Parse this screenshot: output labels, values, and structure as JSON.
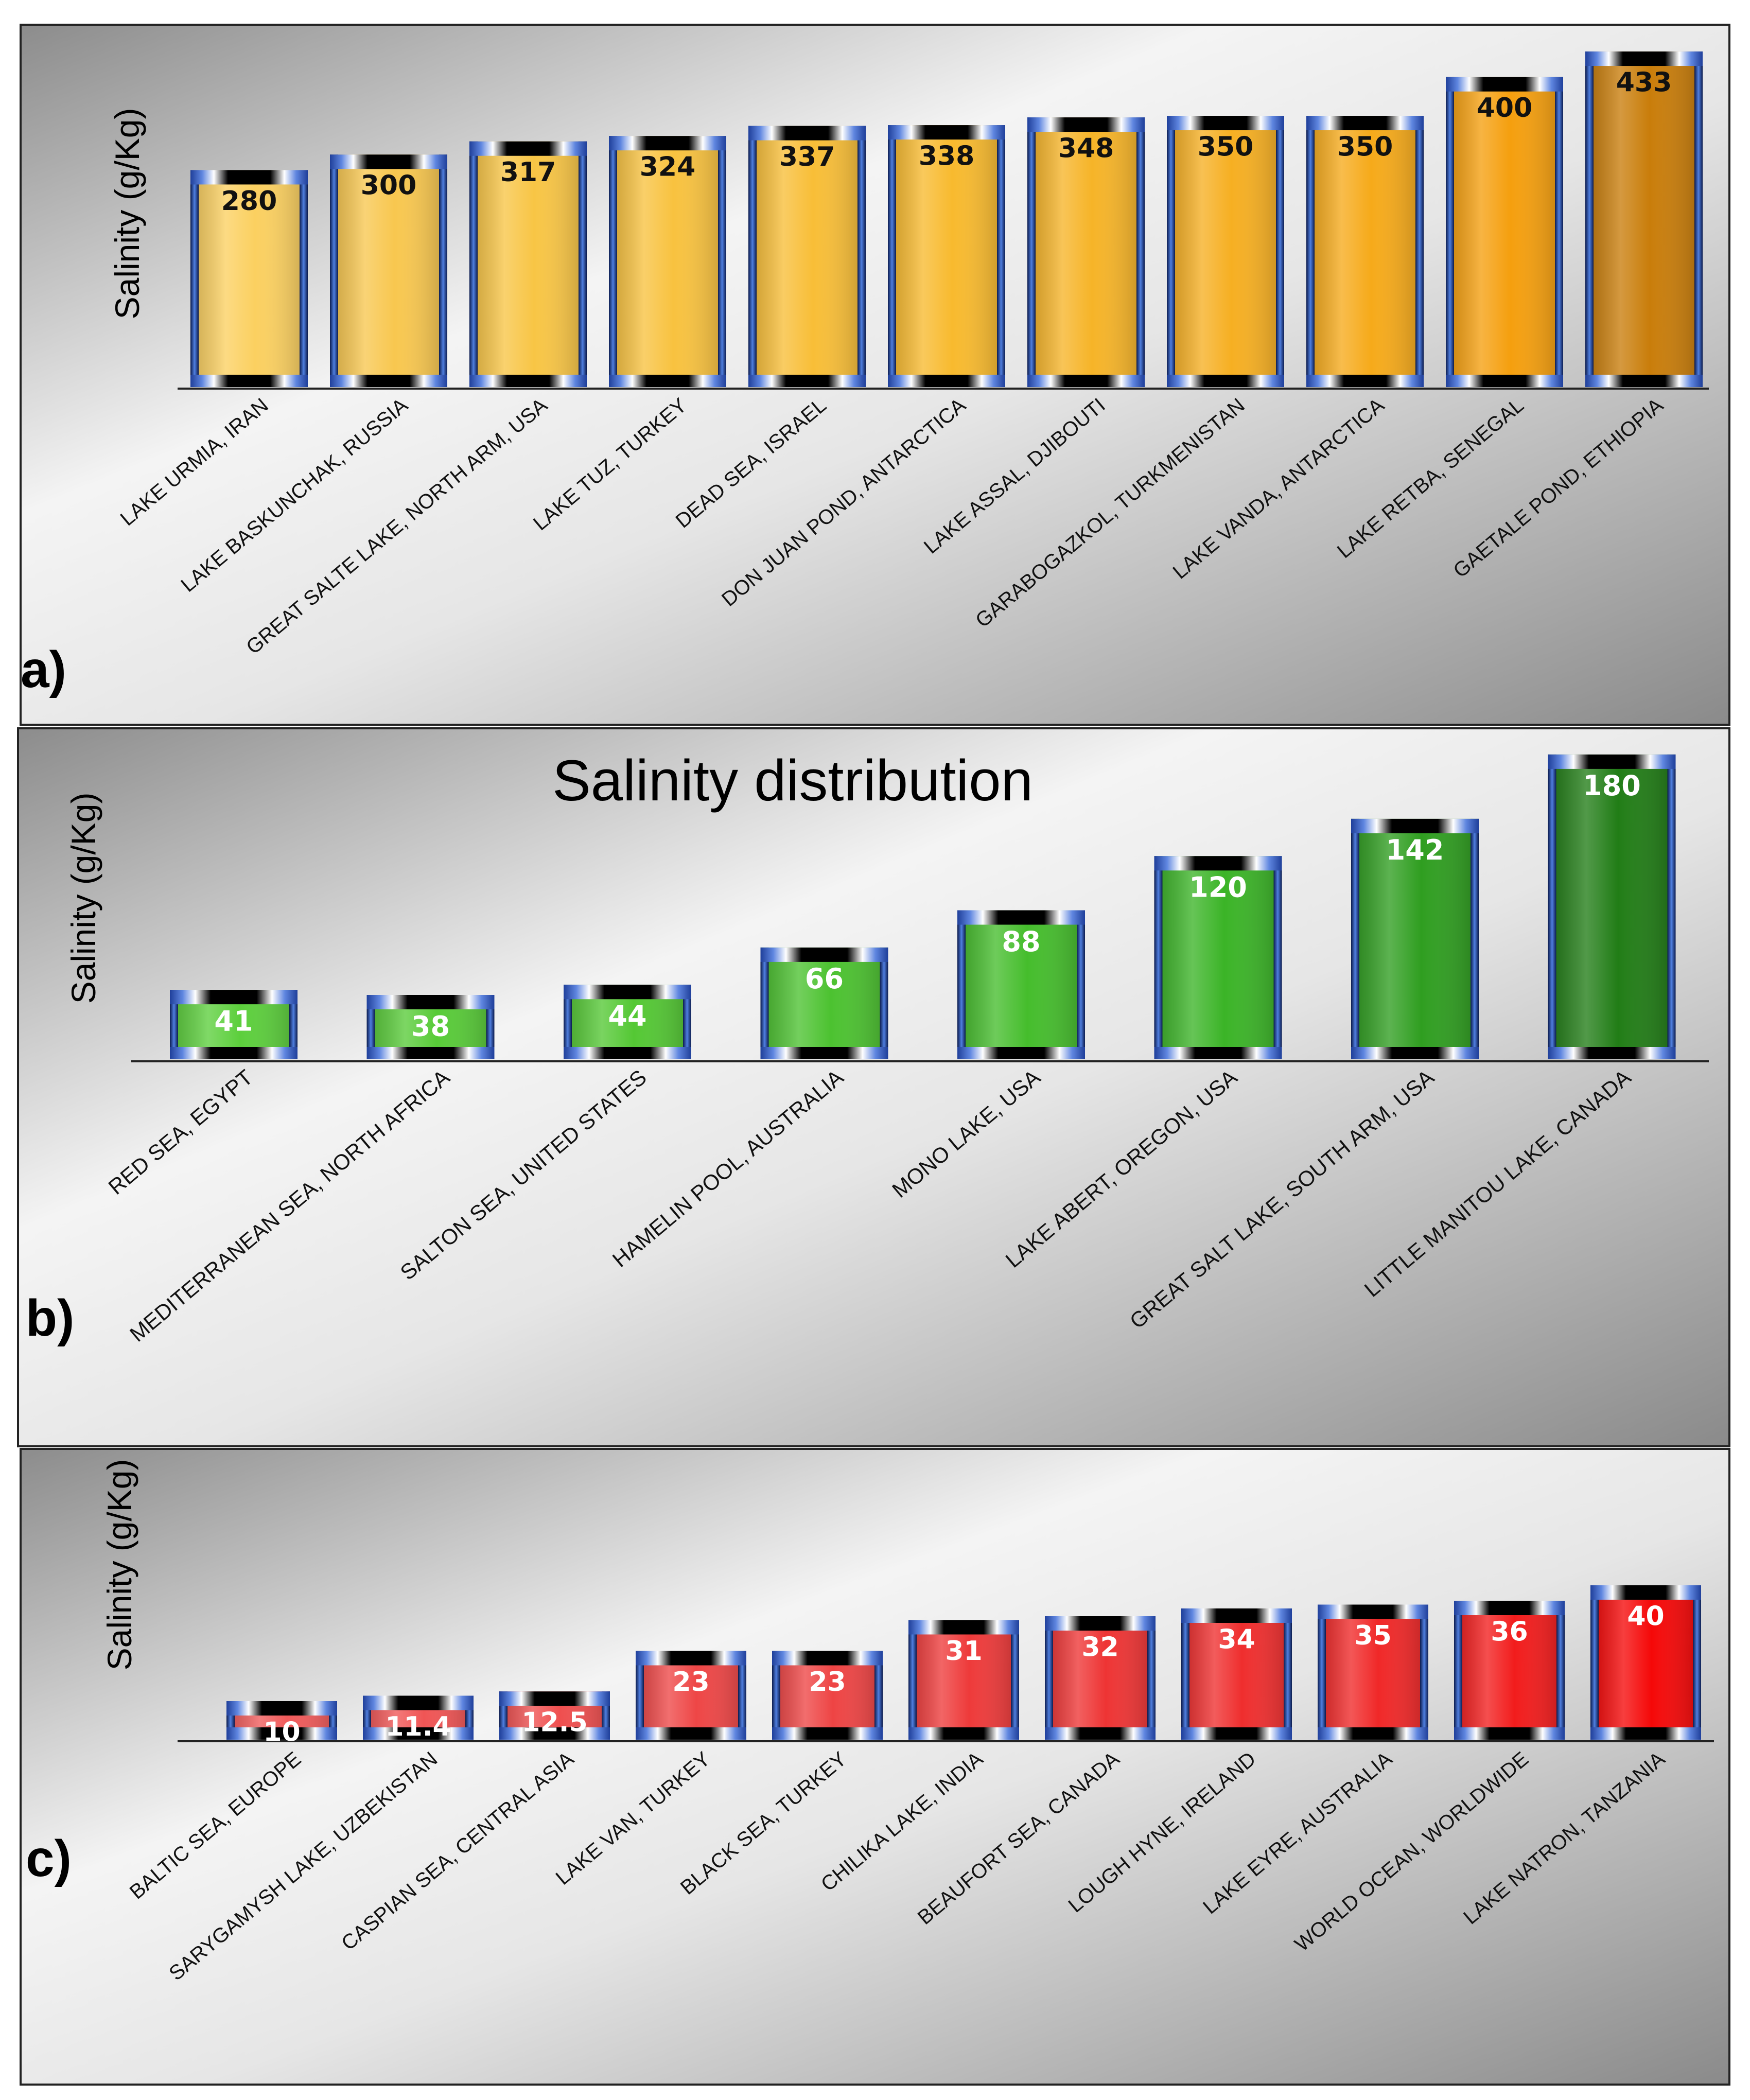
{
  "chart_data": [
    {
      "type": "bar",
      "panel": "a)",
      "title": "",
      "ylabel": "Salinity (g/Kg)",
      "xlabel": "",
      "ylim": [
        0,
        445
      ],
      "grid": false,
      "colors": [
        "#fbd060",
        "#f8c74f",
        "#f8c545",
        "#f8c23f",
        "#f8be37",
        "#f8ba2e",
        "#f6b428",
        "#f6af22",
        "#f6aa1a",
        "#f59f0e",
        "#c97d0a"
      ],
      "categories": [
        "LAKE URMIA, IRAN",
        "LAKE BASKUNCHAK, RUSSIA",
        "GREAT SALTE LAKE, NORTH ARM, USA",
        "LAKE TUZ, TURKEY",
        "DEAD SEA, ISRAEL",
        "DON JUAN POND, ANTARCTICA",
        "LAKE ASSAL, DJIBOUTI",
        "GARABOGAZKOL, TURKMENISTAN",
        "LAKE VANDA, ANTARCTICA",
        "LAKE RETBA, SENEGAL",
        "GAETALE POND, ETHIOPIA"
      ],
      "values": [
        280,
        300,
        317,
        324,
        337,
        338,
        348,
        350,
        350,
        400,
        433
      ],
      "data_labels": [
        "280",
        "300",
        "317",
        "324",
        "337",
        "338",
        "348",
        "350",
        "350",
        "400",
        "433"
      ]
    },
    {
      "type": "bar",
      "panel": "b)",
      "title": "Salinity distribution",
      "ylabel": "Salinity (g/Kg)",
      "xlabel": "",
      "ylim": [
        0,
        190
      ],
      "grid": false,
      "colors": [
        "#5ccf3c",
        "#58cb38",
        "#54c834",
        "#4cc230",
        "#45bd2c",
        "#3bb427",
        "#2f9e20",
        "#217d16"
      ],
      "categories": [
        "RED SEA, EGYPT",
        "MEDITERRANEAN SEA, NORTH AFRICA",
        "SALTON SEA, UNITED STATES",
        "HAMELIN POOL, AUSTRALIA",
        "MONO LAKE, USA",
        "LAKE ABERT, OREGON, USA",
        "GREAT SALT LAKE, SOUTH ARM, USA",
        "LITTLE MANITOU LAKE, CANADA"
      ],
      "values": [
        41,
        38,
        44,
        66,
        88,
        120,
        142,
        180
      ],
      "data_labels": [
        "41",
        "38",
        "44",
        "66",
        "88",
        "120",
        "142",
        "180"
      ]
    },
    {
      "type": "bar",
      "panel": "c)",
      "title": "",
      "ylabel": "Salinity (g/Kg)",
      "xlabel": "",
      "ylim": [
        0,
        44
      ],
      "grid": false,
      "colors": [
        "#f05a5a",
        "#f05555",
        "#ef4f4f",
        "#ee4646",
        "#ee4444",
        "#ee3a3a",
        "#ee3434",
        "#ef2e2e",
        "#f02828",
        "#f21c1c",
        "#f50808"
      ],
      "categories": [
        "BALTIC SEA, EUROPE",
        "SARYGAMYSH LAKE, UZBEKISTAN",
        "CASPIAN SEA, CENTRAL ASIA",
        "LAKE VAN, TURKEY",
        "BLACK SEA, TURKEY",
        "CHILIKA LAKE, INDIA",
        "BEAUFORT SEA, CANADA",
        "LOUGH HYNE, IRELAND",
        "LAKE EYRE, AUSTRALIA",
        "WORLD OCEAN, WORLDWIDE",
        "LAKE NATRON, TANZANIA"
      ],
      "values": [
        10,
        11.4,
        12.5,
        23,
        23,
        31,
        32,
        34,
        35,
        36,
        40
      ],
      "data_labels": [
        "10",
        "11.4",
        "12.5",
        "23",
        "23",
        "31",
        "32",
        "34",
        "35",
        "36",
        "40"
      ]
    }
  ]
}
